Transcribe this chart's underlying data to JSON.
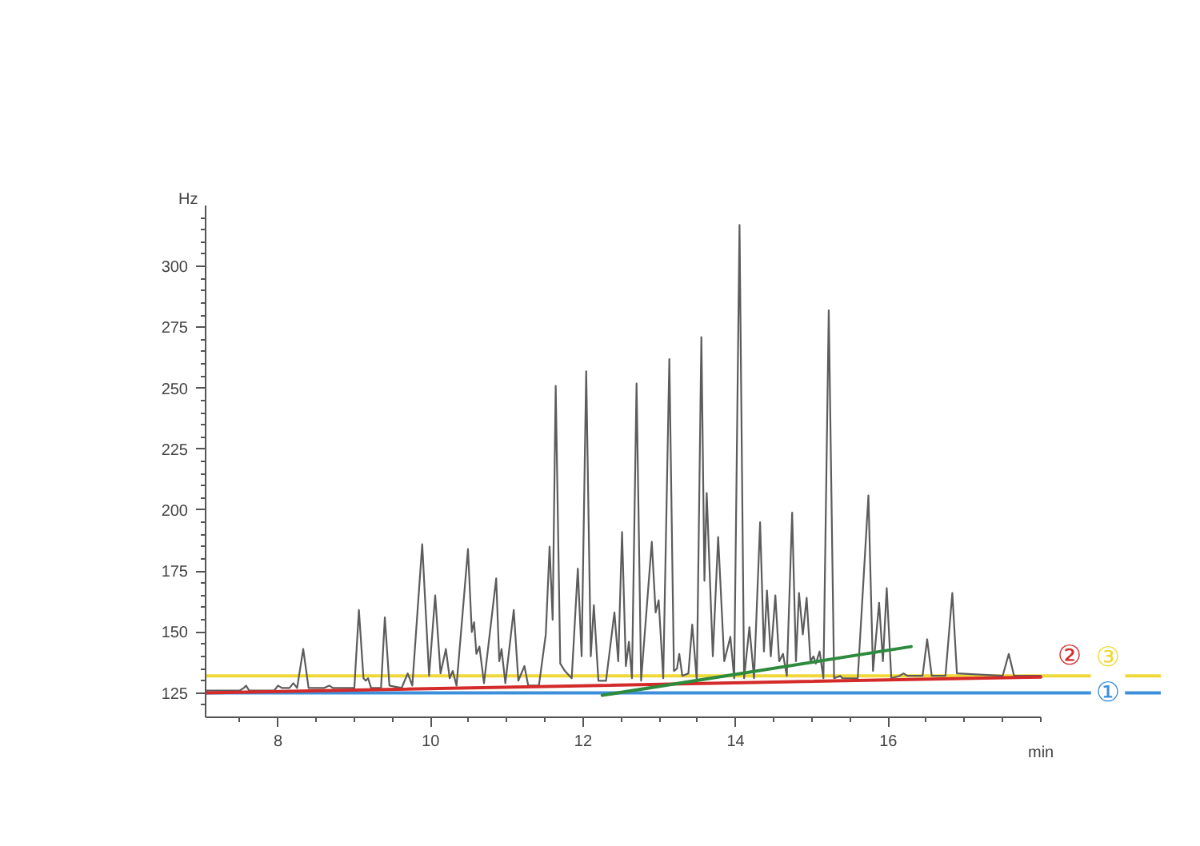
{
  "chart_data": {
    "type": "line",
    "xlabel": "min",
    "ylabel": "Hz",
    "grid": false,
    "xlim": [
      7.05,
      18.0
    ],
    "ylim": [
      115,
      325
    ],
    "xticks": [
      {
        "value": 7.5,
        "label": null
      },
      8,
      {
        "value": 8.5,
        "label": null
      },
      {
        "value": 9,
        "label": null
      },
      {
        "value": 9.5,
        "label": null
      },
      10,
      {
        "value": 10.5,
        "label": null
      },
      {
        "value": 11,
        "label": null
      },
      {
        "value": 11.5,
        "label": null
      },
      12,
      {
        "value": 12.5,
        "label": null
      },
      {
        "value": 13,
        "label": null
      },
      {
        "value": 13.5,
        "label": null
      },
      14,
      {
        "value": 14.5,
        "label": null
      },
      {
        "value": 15,
        "label": null
      },
      {
        "value": 15.5,
        "label": null
      },
      16,
      {
        "value": 16.5,
        "label": null
      },
      {
        "value": 17,
        "label": null
      },
      {
        "value": 17.5,
        "label": null
      },
      {
        "value": 18,
        "label": null
      }
    ],
    "yticks": [
      {
        "value": 120,
        "label": null
      },
      125,
      {
        "value": 130,
        "label": null
      },
      {
        "value": 135,
        "label": null
      },
      {
        "value": 140,
        "label": null
      },
      {
        "value": 145,
        "label": null
      },
      150,
      {
        "value": 155,
        "label": null
      },
      {
        "value": 160,
        "label": null
      },
      {
        "value": 165,
        "label": null
      },
      {
        "value": 170,
        "label": null
      },
      175,
      {
        "value": 180,
        "label": null
      },
      {
        "value": 185,
        "label": null
      },
      {
        "value": 190,
        "label": null
      },
      {
        "value": 195,
        "label": null
      },
      200,
      {
        "value": 205,
        "label": null
      },
      {
        "value": 210,
        "label": null
      },
      {
        "value": 215,
        "label": null
      },
      {
        "value": 220,
        "label": null
      },
      225,
      {
        "value": 230,
        "label": null
      },
      {
        "value": 235,
        "label": null
      },
      {
        "value": 240,
        "label": null
      },
      {
        "value": 245,
        "label": null
      },
      250,
      {
        "value": 255,
        "label": null
      },
      {
        "value": 260,
        "label": null
      },
      {
        "value": 265,
        "label": null
      },
      {
        "value": 270,
        "label": null
      },
      275,
      {
        "value": 280,
        "label": null
      },
      {
        "value": 285,
        "label": null
      },
      {
        "value": 290,
        "label": null
      },
      {
        "value": 295,
        "label": null
      },
      300,
      {
        "value": 305,
        "label": null
      },
      {
        "value": 310,
        "label": null
      },
      {
        "value": 315,
        "label": null
      },
      {
        "value": 320,
        "label": null
      }
    ],
    "x": [
      7.05,
      7.5,
      7.55,
      7.58,
      7.62,
      7.95,
      8.0,
      8.05,
      8.15,
      8.2,
      8.25,
      8.33,
      8.4,
      8.6,
      8.67,
      8.72,
      9.0,
      9.06,
      9.12,
      9.15,
      9.18,
      9.22,
      9.35,
      9.4,
      9.46,
      9.62,
      9.7,
      9.76,
      9.89,
      9.98,
      10.06,
      10.13,
      10.2,
      10.25,
      10.29,
      10.34,
      10.49,
      10.54,
      10.57,
      10.6,
      10.64,
      10.7,
      10.86,
      10.9,
      10.93,
      10.98,
      11.09,
      11.15,
      11.23,
      11.28,
      11.42,
      11.51,
      11.56,
      11.6,
      11.64,
      11.7,
      11.76,
      11.85,
      11.93,
      11.98,
      12.04,
      12.1,
      12.14,
      12.2,
      12.3,
      12.41,
      12.46,
      12.51,
      12.56,
      12.6,
      12.64,
      12.7,
      12.76,
      12.9,
      12.95,
      12.99,
      13.05,
      13.13,
      13.19,
      13.23,
      13.26,
      13.3,
      13.38,
      13.43,
      13.49,
      13.55,
      13.59,
      13.62,
      13.7,
      13.77,
      13.85,
      13.93,
      13.98,
      14.05,
      14.11,
      14.18,
      14.24,
      14.32,
      14.37,
      14.41,
      14.46,
      14.52,
      14.57,
      14.62,
      14.67,
      14.74,
      14.79,
      14.83,
      14.88,
      14.93,
      14.98,
      15.02,
      15.05,
      15.1,
      15.15,
      15.22,
      15.29,
      15.37,
      15.4,
      15.6,
      15.74,
      15.8,
      15.88,
      15.93,
      15.98,
      16.04,
      16.15,
      16.2,
      16.25,
      16.45,
      16.51,
      16.57,
      16.75,
      16.84,
      16.9,
      17.5,
      17.58,
      17.65,
      18.0
    ],
    "series": [
      {
        "color": "#5c5c5c",
        "values": [
          126,
          126,
          127,
          128,
          126,
          126,
          128,
          127,
          127,
          129,
          127,
          143,
          127,
          127,
          128,
          127,
          127,
          159,
          131,
          130,
          131,
          127,
          127,
          156,
          128,
          127,
          133,
          128,
          186,
          132,
          165,
          133,
          143,
          131,
          134,
          128,
          184,
          150,
          154,
          141,
          144,
          129,
          172,
          138,
          143,
          129,
          159,
          130,
          136,
          128,
          128,
          149,
          185,
          155,
          251,
          137,
          134,
          131,
          176,
          140,
          257,
          140,
          161,
          130,
          130,
          158,
          138,
          191,
          136,
          146,
          131,
          252,
          130,
          187,
          158,
          163,
          131,
          262,
          134,
          135,
          141,
          132,
          133,
          153,
          130,
          271,
          171,
          207,
          140,
          189,
          138,
          148,
          131,
          317,
          131,
          152,
          131,
          195,
          142,
          167,
          140,
          165,
          138,
          141,
          132,
          199,
          138,
          166,
          149,
          164,
          138,
          140,
          137,
          142,
          131,
          282,
          131,
          132,
          131,
          131,
          206,
          134,
          162,
          138,
          168,
          131,
          132,
          133,
          132,
          132,
          147,
          132,
          132,
          166,
          133,
          132,
          141,
          132,
          132
        ]
      },
      {
        "type": "line",
        "name": "②",
        "color": "#d42a2a",
        "x": [
          7.05,
          18.0
        ],
        "values": [
          125,
          131.5
        ]
      },
      {
        "type": "line",
        "color": "#2e8b3e",
        "x": [
          12.25,
          16.3
        ],
        "values": [
          124,
          144
        ]
      }
    ],
    "ref_lines": [
      {
        "axis": "y",
        "value": 125,
        "label": "①",
        "color": "#3d8fdc"
      },
      {
        "axis": "y",
        "value": 132,
        "label": "③",
        "color": "#f0d83a"
      }
    ]
  }
}
